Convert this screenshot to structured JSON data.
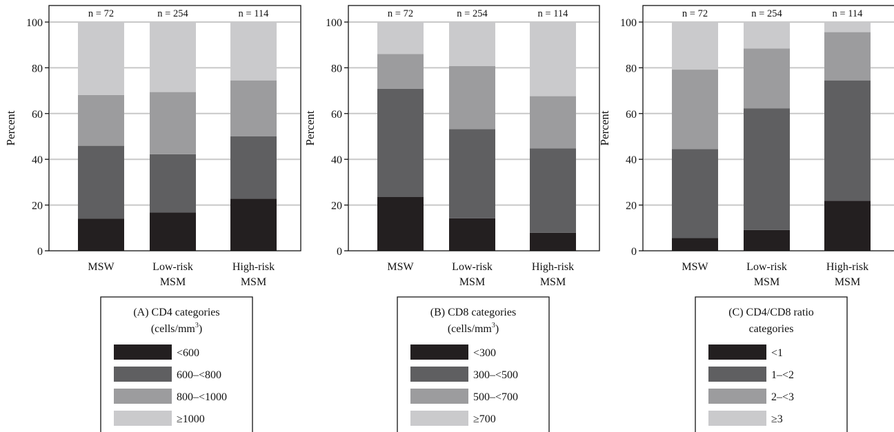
{
  "chart_data": [
    {
      "type": "bar",
      "stacked": true,
      "ylabel": "Percent",
      "ylim": [
        0,
        100
      ],
      "yticks": [
        0,
        20,
        40,
        60,
        80,
        100
      ],
      "categories": [
        {
          "line1": "MSW",
          "line2": ""
        },
        {
          "line1": "Low-risk",
          "line2": "MSM"
        },
        {
          "line1": "High-risk",
          "line2": "MSM"
        }
      ],
      "n_labels": [
        "n = 72",
        "n = 254",
        "n = 114"
      ],
      "legend": {
        "title_line1": "(A) CD4 categories",
        "title_line2": "(cells/mm",
        "title_sup": "3",
        "title_close": ")"
      },
      "series": [
        {
          "name": "<600",
          "color": "#231f20",
          "values": [
            14,
            16.8,
            22.8
          ]
        },
        {
          "name": "600–<800",
          "color": "#5f5f61",
          "values": [
            31.9,
            25.4,
            27.2
          ]
        },
        {
          "name": "800–<1000",
          "color": "#9c9c9e",
          "values": [
            22.2,
            27.2,
            24.5
          ]
        },
        {
          "name": "≥1000",
          "color": "#cacacc",
          "values": [
            31.9,
            30.6,
            25.5
          ]
        }
      ]
    },
    {
      "type": "bar",
      "stacked": true,
      "ylabel": "Percent",
      "ylim": [
        0,
        100
      ],
      "yticks": [
        0,
        20,
        40,
        60,
        80,
        100
      ],
      "categories": [
        {
          "line1": "MSW",
          "line2": ""
        },
        {
          "line1": "Low-risk",
          "line2": "MSM"
        },
        {
          "line1": "High-risk",
          "line2": "MSM"
        }
      ],
      "n_labels": [
        "n = 72",
        "n = 254",
        "n = 114"
      ],
      "legend": {
        "title_line1": "(B) CD8 categories",
        "title_line2": "(cells/mm",
        "title_sup": "3",
        "title_close": ")"
      },
      "series": [
        {
          "name": "<300",
          "color": "#231f20",
          "values": [
            23.6,
            14.2,
            7.9
          ]
        },
        {
          "name": "300–<500",
          "color": "#5f5f61",
          "values": [
            47.2,
            39.0,
            36.9
          ]
        },
        {
          "name": "500–<700",
          "color": "#9c9c9e",
          "values": [
            15.2,
            27.6,
            22.8
          ]
        },
        {
          "name": "≥700",
          "color": "#cacacc",
          "values": [
            14.0,
            19.2,
            32.4
          ]
        }
      ]
    },
    {
      "type": "bar",
      "stacked": true,
      "ylabel": "Percent",
      "ylim": [
        0,
        100
      ],
      "yticks": [
        0,
        20,
        40,
        60,
        80,
        100
      ],
      "categories": [
        {
          "line1": "MSW",
          "line2": ""
        },
        {
          "line1": "Low-risk",
          "line2": "MSM"
        },
        {
          "line1": "High-risk",
          "line2": "MSM"
        }
      ],
      "n_labels": [
        "n = 72",
        "n = 254",
        "n = 114"
      ],
      "legend": {
        "title_line1": "(C) CD4/CD8 ratio",
        "title_line2": "categories",
        "title_sup": "",
        "title_close": ""
      },
      "series": [
        {
          "name": "<1",
          "color": "#231f20",
          "values": [
            5.6,
            9.1,
            21.9
          ]
        },
        {
          "name": "1–<2",
          "color": "#5f5f61",
          "values": [
            38.9,
            53.2,
            52.6
          ]
        },
        {
          "name": "2–<3",
          "color": "#9c9c9e",
          "values": [
            34.7,
            26.1,
            21.1
          ]
        },
        {
          "name": "≥3",
          "color": "#cacacc",
          "values": [
            20.8,
            11.6,
            4.4
          ]
        }
      ]
    }
  ]
}
